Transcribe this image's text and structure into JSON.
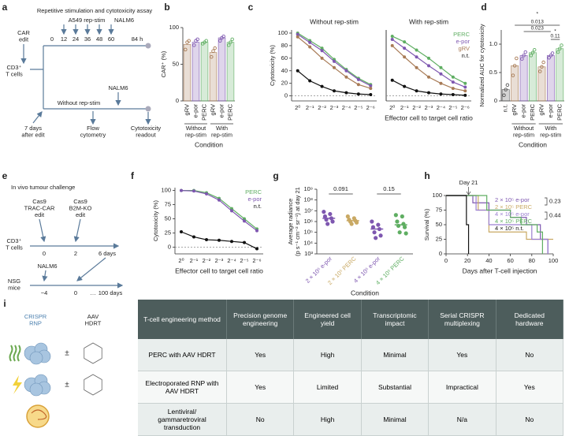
{
  "diagram_a": {
    "panel": "a",
    "title": "Repetitive stimulation and cytotoxicity assay",
    "car_edit": [
      "CAR",
      "edit"
    ],
    "rep_stim": "A549 rep-stim",
    "nalm6_top": "NALM6",
    "timeline": [
      "0",
      "12",
      "24",
      "36",
      "48",
      "60"
    ],
    "end": "84 h",
    "cells": [
      "CD3⁺",
      "T cells"
    ],
    "delay": [
      "7 days",
      "after edit"
    ],
    "branch": "Without rep-stim",
    "nalm6_bottom": "NALM6",
    "flow": [
      "Flow",
      "cytometry"
    ],
    "readout": [
      "Cytotoxicity",
      "readout"
    ]
  },
  "diagram_e": {
    "panel": "e",
    "title": "In vivo tumour challenge",
    "edit1": [
      "Cas9",
      "TRAC-CAR",
      "edit"
    ],
    "edit2": [
      "Cas9",
      "B2M-KO",
      "edit"
    ],
    "cells": [
      "CD3⁺",
      "T cells"
    ],
    "cell_timeline": [
      "0",
      "2",
      "6 days"
    ],
    "nalm6": "NALM6",
    "mice": [
      "NSG",
      "mice"
    ],
    "mice_timeline": [
      "−4",
      "0",
      "…",
      "100 days"
    ]
  },
  "chart_data": [
    {
      "panel": "b",
      "type": "bar",
      "categories": [
        "gRV",
        "e-por",
        "PERC",
        "gRV",
        "e-por",
        "PERC"
      ],
      "values": [
        77,
        80,
        80,
        66,
        86,
        80
      ],
      "points": [
        [
          70,
          80,
          82
        ],
        [
          76,
          82,
          84
        ],
        [
          78,
          80,
          82
        ],
        [
          60,
          68,
          72
        ],
        [
          82,
          86,
          88
        ],
        [
          76,
          80,
          84
        ]
      ],
      "colors": [
        "#a87b56",
        "#7e57b0",
        "#5fae62",
        "#a87b56",
        "#7e57b0",
        "#5fae62"
      ],
      "ylim": [
        0,
        100
      ],
      "yticks": [
        0,
        50,
        100
      ],
      "ylabel": "CAR⁺ (%)",
      "group_labels": [
        [
          "Without",
          "rep-stim"
        ],
        [
          "With",
          "rep-stim"
        ]
      ],
      "xlabel": "Condition"
    },
    {
      "panel": "c",
      "type": "line",
      "title": "Without rep-stim",
      "categories": [
        "2⁰",
        "2⁻¹",
        "2⁻²",
        "2⁻³",
        "2⁻⁴",
        "2⁻⁵",
        "2⁻⁶"
      ],
      "series": [
        {
          "name": "PERC",
          "color": "#5fae62",
          "values": [
            100,
            88,
            76,
            58,
            42,
            28,
            18
          ]
        },
        {
          "name": "e-por",
          "color": "#7e57b0",
          "values": [
            98,
            85,
            72,
            55,
            40,
            26,
            16
          ]
        },
        {
          "name": "gRV",
          "color": "#a87b56",
          "values": [
            94,
            78,
            60,
            45,
            30,
            18,
            12
          ]
        },
        {
          "name": "n.t.",
          "color": "#111111",
          "values": [
            40,
            24,
            15,
            8,
            5,
            3,
            2
          ]
        }
      ],
      "ylim": [
        -8,
        105
      ],
      "yticks": [
        0,
        20,
        40,
        60,
        80,
        100
      ],
      "ylabel": "Cytotoxicity (%)",
      "baseline_dashed": true
    },
    {
      "type": "line",
      "title": "With rep-stim",
      "categories": [
        "2⁰",
        "2⁻¹",
        "2⁻²",
        "2⁻³",
        "2⁻⁴",
        "2⁻⁵",
        "2⁻⁶"
      ],
      "series": [
        {
          "name": "PERC",
          "color": "#5fae62",
          "values": [
            95,
            86,
            73,
            60,
            45,
            30,
            20
          ]
        },
        {
          "name": "e-por",
          "color": "#7e57b0",
          "values": [
            90,
            76,
            62,
            48,
            35,
            22,
            14
          ]
        },
        {
          "name": "gRV",
          "color": "#a87b56",
          "values": [
            80,
            62,
            45,
            30,
            20,
            12,
            8
          ]
        },
        {
          "name": "n.t.",
          "color": "#111111",
          "values": [
            25,
            15,
            8,
            5,
            3,
            2,
            1
          ]
        }
      ],
      "ylim": [
        -8,
        105
      ],
      "xlabel": "Effector cell to target cell ratio",
      "legend": "top-right",
      "baseline_dashed": true
    },
    {
      "panel": "d",
      "type": "bar",
      "categories": [
        "n.t.",
        "gRV",
        "e-por",
        "PERC",
        "gRV",
        "e-por",
        "PERC"
      ],
      "values": [
        0.2,
        0.62,
        0.8,
        0.85,
        0.6,
        0.8,
        0.92
      ],
      "points": [
        [
          0.1,
          0.2,
          0.28
        ],
        [
          0.45,
          0.62,
          0.75
        ],
        [
          0.74,
          0.8,
          0.86
        ],
        [
          0.8,
          0.85,
          0.9
        ],
        [
          0.52,
          0.6,
          0.68
        ],
        [
          0.76,
          0.8,
          0.84
        ],
        [
          0.86,
          0.92,
          0.98
        ]
      ],
      "colors": [
        "#555555",
        "#a87b56",
        "#7e57b0",
        "#5fae62",
        "#a87b56",
        "#7e57b0",
        "#5fae62"
      ],
      "ylim": [
        0,
        1.25
      ],
      "yticks": [
        0,
        0.5,
        {
          "value": 1,
          "label": "1.0"
        }
      ],
      "ylabel": "Normalized AUC for cytotoxicity",
      "group_labels": [
        [
          "Without",
          "rep-stim"
        ],
        [
          "With",
          "rep-stim"
        ]
      ],
      "xlabel": "Condition",
      "annotations": [
        "*",
        "0.013",
        "0.023",
        "*",
        "0.11"
      ]
    },
    {
      "panel": "f",
      "type": "line",
      "categories": [
        "2⁰",
        "2⁻¹",
        "2⁻²",
        "2⁻³",
        "2⁻⁴",
        "2⁻⁵",
        "2⁻⁶"
      ],
      "series": [
        {
          "name": "PERC",
          "color": "#5fae62",
          "values": [
            100,
            100,
            96,
            86,
            68,
            50,
            32
          ]
        },
        {
          "name": "e-por",
          "color": "#7e57b0",
          "values": [
            100,
            99,
            94,
            83,
            64,
            46,
            29
          ]
        },
        {
          "name": "n.t.",
          "color": "#111111",
          "values": [
            27,
            18,
            13,
            12,
            10,
            8,
            -3
          ]
        }
      ],
      "ylim": [
        -12,
        105
      ],
      "yticks": [
        0,
        25,
        50,
        75,
        100
      ],
      "ylabel": "Cytotoxicity (%)",
      "xlabel": "Effector cell to target cell ratio",
      "legend": "top-right",
      "baseline_dashed": true
    },
    {
      "panel": "g",
      "type": "strip",
      "categories": [
        "2 × 10⁵ e-por",
        "2 × 10⁵ PERC",
        "4 × 10⁵ e-por",
        "4 × 10⁵ PERC"
      ],
      "colors": [
        "#7e57b0",
        "#c9a964",
        "#7e57b0",
        "#5fae62"
      ],
      "points": [
        [
          8000000,
          5000000,
          3000000,
          2000000,
          1500000,
          1000000,
          600000
        ],
        [
          3000000,
          2000000,
          1500000,
          1200000,
          1000000,
          800000,
          600000
        ],
        [
          1000000,
          500000,
          300000,
          200000,
          100000,
          50000,
          30000
        ],
        [
          4000000,
          3000000,
          1000000,
          600000,
          400000,
          300000,
          100000,
          80000
        ]
      ],
      "medians": [
        2000000,
        1200000,
        200000,
        500000
      ],
      "log_y": true,
      "ylim": [
        1000,
        1000000000
      ],
      "yticks": [
        {
          "value": 1000,
          "label": "10³"
        },
        {
          "value": 10000,
          "label": "10⁴"
        },
        {
          "value": 100000,
          "label": "10⁵"
        },
        {
          "value": 1000000,
          "label": "10⁶"
        },
        {
          "value": 10000000,
          "label": "10⁷"
        },
        {
          "value": 100000000,
          "label": "10⁸"
        },
        {
          "value": 1000000000,
          "label": "10⁹"
        }
      ],
      "ylabel": [
        "Average radiance",
        "(p s⁻¹ cm⁻² sr⁻¹) at day 21"
      ],
      "xlabel": "Condition",
      "annotations": [
        "0.091",
        "0.15"
      ]
    },
    {
      "panel": "h",
      "type": "step",
      "series": [
        {
          "name": "2 × 10⁵ e-por",
          "color": "#7e57b0",
          "x": [
            0,
            20,
            25,
            40,
            60,
            75,
            88,
            95
          ],
          "values": [
            100,
            100,
            87.5,
            75,
            62.5,
            50,
            25,
            0
          ]
        },
        {
          "name": "2 × 10⁵ PERC",
          "color": "#c9a964",
          "x": [
            0,
            22,
            30,
            40,
            75,
            100
          ],
          "values": [
            100,
            100,
            75,
            37.5,
            25,
            25
          ]
        },
        {
          "name": "4 × 10⁵ e-por",
          "color": "#9b7fd0",
          "x": [
            0,
            20,
            28,
            40,
            80,
            95
          ],
          "values": [
            100,
            100,
            75,
            50,
            25,
            0
          ]
        },
        {
          "name": "4 × 10⁵ PERC",
          "color": "#5fae62",
          "x": [
            0,
            22,
            38,
            60,
            70,
            85,
            90
          ],
          "values": [
            100,
            100,
            75,
            62.5,
            50,
            37.5,
            0
          ]
        },
        {
          "name": "4 × 10⁵ n.t.",
          "color": "#111111",
          "x": [
            0,
            17,
            19,
            21
          ],
          "values": [
            100,
            100,
            50,
            0
          ]
        }
      ],
      "xlim": [
        0,
        100
      ],
      "xticks": [
        0,
        20,
        40,
        60,
        80,
        100
      ],
      "ylim": [
        0,
        100
      ],
      "yticks": [
        0,
        25,
        50,
        75,
        100
      ],
      "ylabel": "Survival (%)",
      "xlabel": "Days after T-cell injection",
      "marker": "Day 21",
      "legend": "top-right",
      "annotations": [
        "0.23",
        "0.44"
      ]
    }
  ],
  "table_i": {
    "panel": "i",
    "icon_labels": [
      [
        "CRISPR",
        "RNP"
      ],
      [
        "AAV",
        "HDRT"
      ]
    ],
    "plus_minus": "±",
    "header": [
      "T-cell engineering method",
      "Precision genome engineering",
      "Engineered cell yield",
      "Transcriptomic impact",
      "Serial CRISPR multiplexing",
      "Dedicated hardware"
    ],
    "rows": [
      [
        "PERC with AAV HDRT",
        "Yes",
        "High",
        "Minimal",
        "Yes",
        "No"
      ],
      [
        "Electroporated RNP with AAV HDRT",
        "Yes",
        "Limited",
        "Substantial",
        "Impractical",
        "Yes"
      ],
      [
        "Lentiviral/ gammaretroviral transduction",
        "No",
        "High",
        "Minimal",
        "N/a",
        "No"
      ]
    ]
  }
}
